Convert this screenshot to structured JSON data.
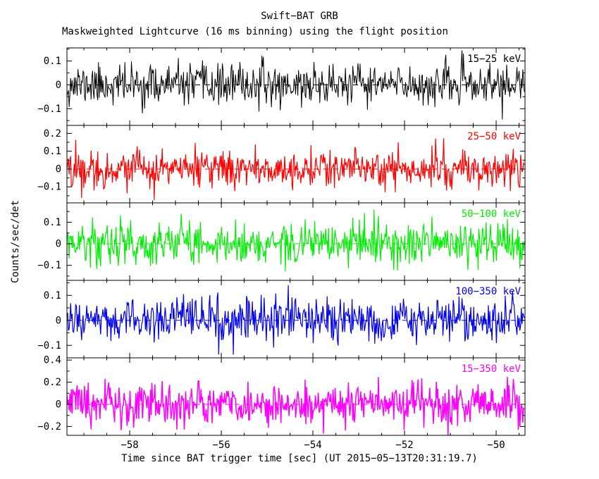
{
  "title": "Swift−BAT GRB",
  "subtitle": "Maskweighted Lightcurve (16 ms binning) using the flight position",
  "axes": {
    "xlabel": "Time since BAT trigger time [sec] (UT 2015−05−13T20:31:19.7)",
    "ylabel": "Counts/sec/det"
  },
  "chart_data": {
    "type": "line",
    "title": "Swift−BAT GRB",
    "subtitle": "Maskweighted Lightcurve (16 ms binning) using the flight position",
    "xlabel": "Time since BAT trigger time [sec] (UT 2015−05−13T20:31:19.7)",
    "ylabel": "Counts/sec/det",
    "x_range": [
      -59.37,
      -49.37
    ],
    "x_ticks": [
      -58,
      -56,
      -54,
      -52,
      -50
    ],
    "x_minor_step": 0.5,
    "bin_seconds": 0.016,
    "n_points": 625,
    "noise_mean": 0,
    "grid": false,
    "legend_position": "none",
    "panels": [
      {
        "label": "15−25 keV",
        "color": "#000000",
        "ylim": [
          -0.17,
          0.155
        ],
        "yticks": [
          -0.1,
          0,
          0.1
        ],
        "noise_sigma": 0.042,
        "seed": 11,
        "line_width": 1
      },
      {
        "label": "25−50 keV",
        "color": "#ff0000",
        "ylim": [
          -0.19,
          0.245
        ],
        "yticks": [
          -0.1,
          0,
          0.1,
          0.2
        ],
        "noise_sigma": 0.052,
        "seed": 22,
        "line_width": 1.2
      },
      {
        "label": "50−100 keV",
        "color": "#00ee00",
        "ylim": [
          -0.17,
          0.19
        ],
        "yticks": [
          -0.1,
          0,
          0.1
        ],
        "noise_sigma": 0.05,
        "seed": 33,
        "line_width": 1.2
      },
      {
        "label": "100−350 keV",
        "color": "#0000ee",
        "ylim": [
          -0.15,
          0.16
        ],
        "yticks": [
          -0.1,
          0,
          0.1
        ],
        "noise_sigma": 0.043,
        "seed": 44,
        "line_width": 1.2
      },
      {
        "label": "15−350 keV",
        "color": "#ff00ff",
        "ylim": [
          -0.28,
          0.42
        ],
        "yticks": [
          -0.2,
          0,
          0.2,
          0.4
        ],
        "noise_sigma": 0.095,
        "seed": 55,
        "line_width": 1.5
      }
    ]
  }
}
